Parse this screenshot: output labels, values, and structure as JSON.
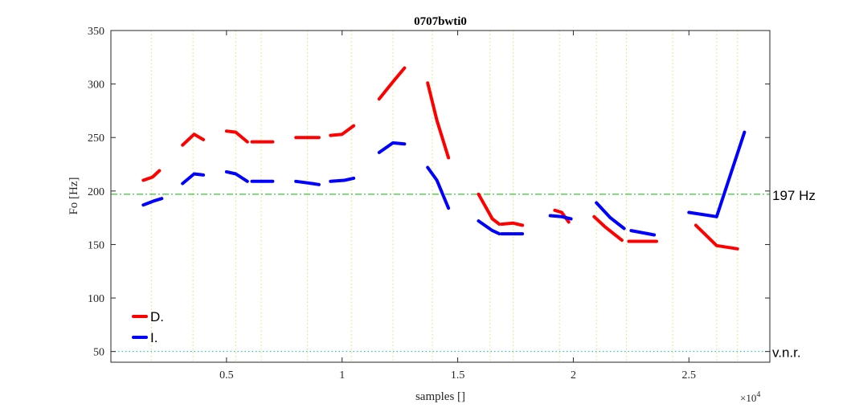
{
  "chart_data": {
    "type": "line",
    "title": "0707bwti0",
    "xlabel": "samples []",
    "ylabel": "Fo [Hz]",
    "x_exponent_label": "×10^4",
    "x_exponent_base": "×10",
    "x_exponent_power": "4",
    "xlim": [
      0,
      28500
    ],
    "ylim": [
      40,
      350
    ],
    "xticks": [
      5000,
      10000,
      15000,
      20000,
      25000
    ],
    "xtick_labels": [
      "0.5",
      "1",
      "1.5",
      "2",
      "2.5"
    ],
    "yticks": [
      50,
      100,
      150,
      200,
      250,
      300,
      350
    ],
    "ytick_labels": [
      "50",
      "100",
      "150",
      "200",
      "250",
      "300",
      "350"
    ],
    "vertical_guides": [
      1750,
      3550,
      5400,
      6500,
      8500,
      10400,
      12200,
      13900,
      16400,
      17400,
      19400,
      21000,
      22300,
      24300,
      26200,
      27100
    ],
    "reference_lines": [
      {
        "label": "197 Hz",
        "value": 197,
        "color": "#00c000",
        "style": "dashdot"
      },
      {
        "label": "v.n.r.",
        "value": 50,
        "color": "#00c0c0",
        "style": "dotted"
      }
    ],
    "legend_position": "bottom-left",
    "series": [
      {
        "name": "D.",
        "color": "#ff0000",
        "segments": [
          [
            [
              1400,
              210
            ],
            [
              1800,
              213
            ],
            [
              2100,
              219
            ]
          ],
          [
            [
              3100,
              243
            ],
            [
              3600,
              253
            ],
            [
              4000,
              248
            ]
          ],
          [
            [
              5000,
              256
            ],
            [
              5400,
              255
            ],
            [
              5900,
              246
            ]
          ],
          [
            [
              6100,
              246
            ],
            [
              7000,
              246
            ]
          ],
          [
            [
              8000,
              250
            ],
            [
              9000,
              250
            ]
          ],
          [
            [
              9500,
              252
            ],
            [
              10000,
              253
            ],
            [
              10500,
              261
            ]
          ],
          [
            [
              11600,
              286
            ],
            [
              12200,
              302
            ],
            [
              12700,
              315
            ]
          ],
          [
            [
              13700,
              301
            ],
            [
              14100,
              266
            ],
            [
              14600,
              231
            ]
          ],
          [
            [
              15900,
              197
            ],
            [
              16500,
              174
            ],
            [
              16800,
              169
            ]
          ],
          [
            [
              16900,
              169
            ],
            [
              17400,
              170
            ],
            [
              17800,
              168
            ]
          ],
          [
            [
              19200,
              182
            ],
            [
              19500,
              180
            ],
            [
              19800,
              171
            ]
          ],
          [
            [
              20900,
              176
            ],
            [
              21400,
              166
            ],
            [
              22100,
              154
            ]
          ],
          [
            [
              22400,
              153
            ],
            [
              23600,
              153
            ]
          ],
          [
            [
              25300,
              168
            ],
            [
              26200,
              149
            ],
            [
              27100,
              146
            ]
          ]
        ]
      },
      {
        "name": "I.",
        "color": "#0000ff",
        "segments": [
          [
            [
              1400,
              187
            ],
            [
              1900,
              191
            ],
            [
              2200,
              193
            ]
          ],
          [
            [
              3100,
              207
            ],
            [
              3600,
              216
            ],
            [
              4000,
              215
            ]
          ],
          [
            [
              5000,
              218
            ],
            [
              5400,
              216
            ],
            [
              5900,
              209
            ]
          ],
          [
            [
              6100,
              209
            ],
            [
              7000,
              209
            ]
          ],
          [
            [
              8000,
              209
            ],
            [
              8700,
              207
            ],
            [
              9000,
              206
            ]
          ],
          [
            [
              9500,
              209
            ],
            [
              10100,
              210
            ],
            [
              10500,
              212
            ]
          ],
          [
            [
              11600,
              236
            ],
            [
              12200,
              245
            ],
            [
              12700,
              244
            ]
          ],
          [
            [
              13700,
              222
            ],
            [
              14100,
              210
            ],
            [
              14600,
              184
            ]
          ],
          [
            [
              15900,
              172
            ],
            [
              16500,
              163
            ],
            [
              16800,
              160
            ]
          ],
          [
            [
              16900,
              160
            ],
            [
              17800,
              160
            ]
          ],
          [
            [
              19000,
              177
            ],
            [
              19500,
              176
            ],
            [
              19900,
              174
            ]
          ],
          [
            [
              21000,
              189
            ],
            [
              21600,
              175
            ],
            [
              22200,
              165
            ]
          ],
          [
            [
              22500,
              163
            ],
            [
              23500,
              159
            ]
          ],
          [
            [
              25000,
              180
            ],
            [
              25600,
              178
            ],
            [
              26200,
              176
            ],
            [
              27400,
              255
            ]
          ]
        ]
      }
    ]
  }
}
